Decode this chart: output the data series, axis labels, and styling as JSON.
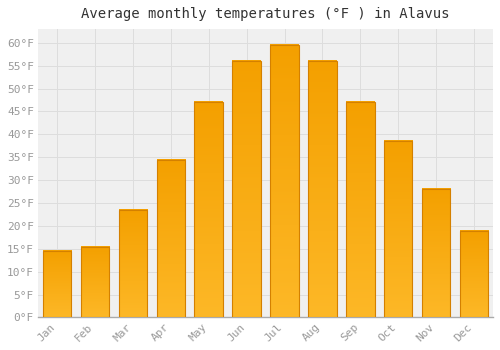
{
  "title": "Average monthly temperatures (°F ) in Alavus",
  "months": [
    "Jan",
    "Feb",
    "Mar",
    "Apr",
    "May",
    "Jun",
    "Jul",
    "Aug",
    "Sep",
    "Oct",
    "Nov",
    "Dec"
  ],
  "values": [
    14.5,
    15.5,
    23.5,
    34.5,
    47.0,
    56.0,
    59.5,
    56.0,
    47.0,
    38.5,
    28.0,
    19.0
  ],
  "bar_color_top": "#FDB827",
  "bar_color_bottom": "#F4A000",
  "bar_edge_color": "#D48000",
  "background_color": "#FFFFFF",
  "plot_bg_color": "#F0F0F0",
  "grid_color": "#DDDDDD",
  "text_color": "#999999",
  "title_color": "#333333",
  "ylim": [
    0,
    63
  ],
  "yticks": [
    0,
    5,
    10,
    15,
    20,
    25,
    30,
    35,
    40,
    45,
    50,
    55,
    60
  ],
  "title_fontsize": 10,
  "tick_fontsize": 8,
  "bar_width": 0.75
}
